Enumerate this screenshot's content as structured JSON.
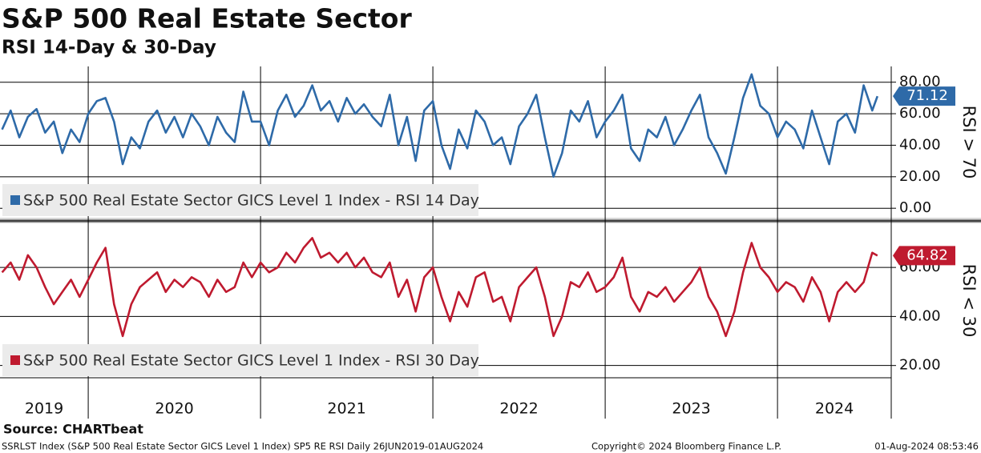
{
  "title": "S&P 500 Real Estate Sector",
  "subtitle": "RSI 14-Day & 30-Day",
  "source": "Source: CHARTbeat",
  "footer": {
    "left": "SSRLST Index (S&P 500 Real Estate Sector GICS Level 1 Index) SP5 RE RSI  Daily 26JUN2019-01AUG2024",
    "center": "Copyright© 2024 Bloomberg Finance L.P.",
    "right": "01-Aug-2024 08:53:46"
  },
  "x_axis": {
    "labels": [
      2019,
      2020,
      2021,
      2022,
      2023,
      2024
    ]
  },
  "chart_data": [
    {
      "type": "line",
      "y_label": "RSI > 70",
      "x": [
        2019.5,
        2019.55,
        2019.6,
        2019.65,
        2019.7,
        2019.75,
        2019.8,
        2019.85,
        2019.9,
        2019.95,
        2020.0,
        2020.05,
        2020.1,
        2020.15,
        2020.2,
        2020.25,
        2020.3,
        2020.35,
        2020.4,
        2020.45,
        2020.5,
        2020.55,
        2020.6,
        2020.65,
        2020.7,
        2020.75,
        2020.8,
        2020.85,
        2020.9,
        2020.95,
        2021.0,
        2021.05,
        2021.1,
        2021.15,
        2021.2,
        2021.25,
        2021.3,
        2021.35,
        2021.4,
        2021.45,
        2021.5,
        2021.55,
        2021.6,
        2021.65,
        2021.7,
        2021.75,
        2021.8,
        2021.85,
        2021.9,
        2021.95,
        2022.0,
        2022.05,
        2022.1,
        2022.15,
        2022.2,
        2022.25,
        2022.3,
        2022.35,
        2022.4,
        2022.45,
        2022.5,
        2022.55,
        2022.6,
        2022.65,
        2022.7,
        2022.75,
        2022.8,
        2022.85,
        2022.9,
        2022.95,
        2023.0,
        2023.05,
        2023.1,
        2023.15,
        2023.2,
        2023.25,
        2023.3,
        2023.35,
        2023.4,
        2023.45,
        2023.5,
        2023.55,
        2023.6,
        2023.65,
        2023.7,
        2023.75,
        2023.8,
        2023.85,
        2023.9,
        2023.95,
        2024.0,
        2024.05,
        2024.1,
        2024.15,
        2024.2,
        2024.25,
        2024.3,
        2024.35,
        2024.4,
        2024.45,
        2024.5,
        2024.55,
        2024.58
      ],
      "xlim": [
        2019.488,
        2024.66
      ],
      "xticks": [
        2020,
        2021,
        2022,
        2023,
        2024
      ],
      "ylim": [
        -6,
        90
      ],
      "yticks": [
        {
          "value": 0,
          "label": "0.00"
        },
        {
          "value": 20,
          "label": "20.00"
        },
        {
          "value": 40,
          "label": "40.00"
        },
        {
          "value": 60,
          "label": "60.00"
        },
        {
          "value": 80,
          "label": "80.00"
        }
      ],
      "series": [
        {
          "name": "S&P 500 Real Estate Sector GICS Level 1 Index - RSI 14 Day",
          "color": "#2e6aa8",
          "values": [
            50,
            62,
            45,
            58,
            63,
            48,
            55,
            35,
            50,
            42,
            60,
            68,
            70,
            55,
            28,
            45,
            38,
            55,
            62,
            48,
            58,
            45,
            60,
            52,
            40,
            58,
            48,
            42,
            74,
            55,
            55,
            40,
            62,
            72,
            58,
            65,
            78,
            62,
            68,
            55,
            70,
            60,
            66,
            58,
            52,
            72,
            40,
            58,
            30,
            62,
            68,
            40,
            25,
            50,
            38,
            62,
            55,
            40,
            45,
            28,
            52,
            60,
            72,
            45,
            20,
            35,
            62,
            55,
            68,
            45,
            55,
            62,
            72,
            38,
            30,
            50,
            45,
            58,
            40,
            50,
            62,
            72,
            45,
            35,
            22,
            45,
            70,
            85,
            65,
            60,
            45,
            55,
            50,
            38,
            62,
            45,
            28,
            55,
            60,
            48,
            78,
            62,
            71.12
          ]
        }
      ]
    },
    {
      "type": "line",
      "y_label": "RSI < 30",
      "x": [
        2019.5,
        2019.55,
        2019.6,
        2019.65,
        2019.7,
        2019.75,
        2019.8,
        2019.85,
        2019.9,
        2019.95,
        2020.0,
        2020.05,
        2020.1,
        2020.15,
        2020.2,
        2020.25,
        2020.3,
        2020.35,
        2020.4,
        2020.45,
        2020.5,
        2020.55,
        2020.6,
        2020.65,
        2020.7,
        2020.75,
        2020.8,
        2020.85,
        2020.9,
        2020.95,
        2021.0,
        2021.05,
        2021.1,
        2021.15,
        2021.2,
        2021.25,
        2021.3,
        2021.35,
        2021.4,
        2021.45,
        2021.5,
        2021.55,
        2021.6,
        2021.65,
        2021.7,
        2021.75,
        2021.8,
        2021.85,
        2021.9,
        2021.95,
        2022.0,
        2022.05,
        2022.1,
        2022.15,
        2022.2,
        2022.25,
        2022.3,
        2022.35,
        2022.4,
        2022.45,
        2022.5,
        2022.55,
        2022.6,
        2022.65,
        2022.7,
        2022.75,
        2022.8,
        2022.85,
        2022.9,
        2022.95,
        2023.0,
        2023.05,
        2023.1,
        2023.15,
        2023.2,
        2023.25,
        2023.3,
        2023.35,
        2023.4,
        2023.45,
        2023.5,
        2023.55,
        2023.6,
        2023.65,
        2023.7,
        2023.75,
        2023.8,
        2023.85,
        2023.9,
        2023.95,
        2024.0,
        2024.05,
        2024.1,
        2024.15,
        2024.2,
        2024.25,
        2024.3,
        2024.35,
        2024.4,
        2024.45,
        2024.5,
        2024.55,
        2024.58
      ],
      "xlim": [
        2019.488,
        2024.66
      ],
      "xticks": [
        2020,
        2021,
        2022,
        2023,
        2024
      ],
      "ylim": [
        15,
        78
      ],
      "yticks": [
        {
          "value": 20,
          "label": "20.00"
        },
        {
          "value": 40,
          "label": "40.00"
        },
        {
          "value": 60,
          "label": "60.00"
        }
      ],
      "series": [
        {
          "name": "S&P 500 Real Estate Sector GICS Level 1 Index - RSI 30 Day",
          "color": "#bf1a2f",
          "values": [
            58,
            62,
            55,
            65,
            60,
            52,
            45,
            50,
            55,
            48,
            55,
            62,
            68,
            45,
            32,
            45,
            52,
            55,
            58,
            50,
            55,
            52,
            56,
            54,
            48,
            55,
            50,
            52,
            62,
            56,
            62,
            58,
            60,
            66,
            62,
            68,
            72,
            64,
            66,
            62,
            66,
            60,
            64,
            58,
            56,
            62,
            48,
            55,
            42,
            56,
            60,
            48,
            38,
            50,
            44,
            56,
            58,
            46,
            48,
            38,
            52,
            56,
            60,
            48,
            32,
            40,
            54,
            52,
            58,
            50,
            52,
            56,
            64,
            48,
            42,
            50,
            48,
            52,
            46,
            50,
            54,
            60,
            48,
            42,
            32,
            42,
            58,
            70,
            60,
            56,
            50,
            54,
            52,
            46,
            56,
            50,
            38,
            50,
            54,
            50,
            54,
            66,
            64.82
          ]
        }
      ]
    }
  ]
}
